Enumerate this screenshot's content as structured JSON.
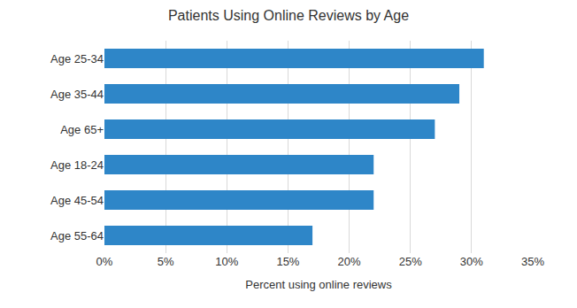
{
  "chart_data": {
    "type": "bar",
    "orientation": "horizontal",
    "title": "Patients Using Online Reviews by Age",
    "x_label": "Percent using online reviews",
    "categories": [
      "Age 25-34",
      "Age 35-44",
      "Age 65+",
      "Age 18-24",
      "Age 45-54",
      "Age 55-64"
    ],
    "values": [
      31,
      29,
      27,
      22,
      22,
      17
    ],
    "color": "#2e86c8",
    "xlim": [
      0,
      35
    ],
    "xticks": [
      {
        "value": 0,
        "label": "0%"
      },
      {
        "value": 5,
        "label": "5%"
      },
      {
        "value": 10,
        "label": "10%"
      },
      {
        "value": 15,
        "label": "15%"
      },
      {
        "value": 20,
        "label": "20%"
      },
      {
        "value": 25,
        "label": "25%"
      },
      {
        "value": 30,
        "label": "30%"
      },
      {
        "value": 35,
        "label": "35%"
      }
    ],
    "grid": true
  }
}
